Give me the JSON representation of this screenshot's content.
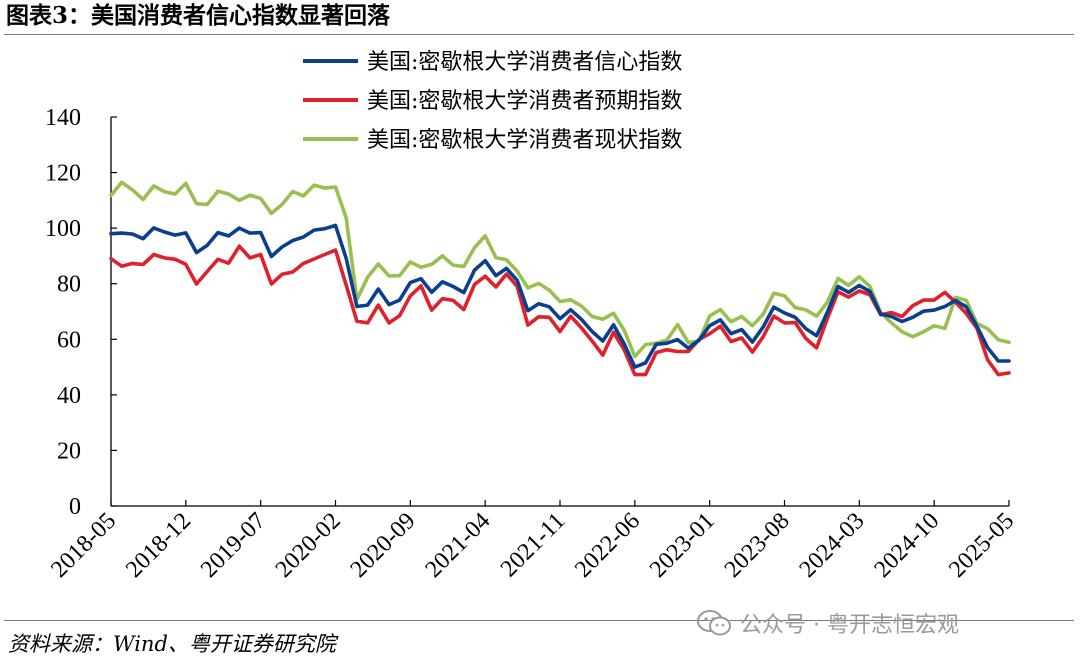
{
  "title": "图表3：美国消费者信心指数显著回落",
  "source": "资料来源：Wind、粤开证券研究院",
  "watermark": "公众号 · 粤开志恒宏观",
  "colors": {
    "confidence": "#0a3f8f",
    "expectations": "#e0202a",
    "current": "#98bf50"
  },
  "chart_data": {
    "type": "line",
    "title": "",
    "xlabel": "",
    "ylabel": "",
    "ylim": [
      0,
      140
    ],
    "yticks": [
      0,
      20,
      40,
      60,
      80,
      100,
      120,
      140
    ],
    "grid": false,
    "legend_position": "top-center",
    "x": [
      "2018-05",
      "2018-06",
      "2018-07",
      "2018-08",
      "2018-09",
      "2018-10",
      "2018-11",
      "2018-12",
      "2019-01",
      "2019-02",
      "2019-03",
      "2019-04",
      "2019-05",
      "2019-06",
      "2019-07",
      "2019-08",
      "2019-09",
      "2019-10",
      "2019-11",
      "2019-12",
      "2020-01",
      "2020-02",
      "2020-03",
      "2020-04",
      "2020-05",
      "2020-06",
      "2020-07",
      "2020-08",
      "2020-09",
      "2020-10",
      "2020-11",
      "2020-12",
      "2021-01",
      "2021-02",
      "2021-03",
      "2021-04",
      "2021-05",
      "2021-06",
      "2021-07",
      "2021-08",
      "2021-09",
      "2021-10",
      "2021-11",
      "2021-12",
      "2022-01",
      "2022-02",
      "2022-03",
      "2022-04",
      "2022-05",
      "2022-06",
      "2022-07",
      "2022-08",
      "2022-09",
      "2022-10",
      "2022-11",
      "2022-12",
      "2023-01",
      "2023-02",
      "2023-03",
      "2023-04",
      "2023-05",
      "2023-06",
      "2023-07",
      "2023-08",
      "2023-09",
      "2023-10",
      "2023-11",
      "2023-12",
      "2024-01",
      "2024-02",
      "2024-03",
      "2024-04",
      "2024-05",
      "2024-06",
      "2024-07",
      "2024-08",
      "2024-09",
      "2024-10",
      "2024-11",
      "2024-12",
      "2025-01",
      "2025-02",
      "2025-03",
      "2025-04",
      "2025-05"
    ],
    "x_tick_labels": [
      "2018-05",
      "2018-12",
      "2019-07",
      "2020-02",
      "2020-09",
      "2021-04",
      "2021-11",
      "2022-06",
      "2023-01",
      "2023-08",
      "2024-03",
      "2024-10",
      "2025-05"
    ],
    "series": [
      {
        "name": "美国:密歇根大学消费者信心指数",
        "key": "confidence",
        "values": [
          98.0,
          98.2,
          97.9,
          96.2,
          100.1,
          98.6,
          97.5,
          98.3,
          91.2,
          93.8,
          98.4,
          97.2,
          100.0,
          98.2,
          98.4,
          89.8,
          93.2,
          95.5,
          96.8,
          99.3,
          99.8,
          101.0,
          89.1,
          71.8,
          72.3,
          78.1,
          72.5,
          74.1,
          80.4,
          81.8,
          76.9,
          80.7,
          79.0,
          76.8,
          84.9,
          88.3,
          82.9,
          85.5,
          81.2,
          70.3,
          72.8,
          71.7,
          67.4,
          70.6,
          67.2,
          62.8,
          59.4,
          65.2,
          58.4,
          50.0,
          51.5,
          58.2,
          58.6,
          59.9,
          56.8,
          59.7,
          64.9,
          67.0,
          62.0,
          63.5,
          59.0,
          64.4,
          71.6,
          69.5,
          67.9,
          63.8,
          61.3,
          69.7,
          79.0,
          76.9,
          79.4,
          77.2,
          69.1,
          68.2,
          66.4,
          67.9,
          70.1,
          70.5,
          71.8,
          74.0,
          71.7,
          64.7,
          57.0,
          52.2,
          52.2
        ]
      },
      {
        "name": "美国:密歇根大学消费者预期指数",
        "key": "expectations",
        "values": [
          89.0,
          86.3,
          87.3,
          86.9,
          90.5,
          89.3,
          88.8,
          87.0,
          79.9,
          84.4,
          88.8,
          87.4,
          93.5,
          89.3,
          90.5,
          79.9,
          83.4,
          84.2,
          87.3,
          88.9,
          90.5,
          92.1,
          79.5,
          66.5,
          65.9,
          72.3,
          65.9,
          68.5,
          75.6,
          79.2,
          70.5,
          74.6,
          74.0,
          70.7,
          79.7,
          82.7,
          78.8,
          83.5,
          79.0,
          65.1,
          68.1,
          67.9,
          62.8,
          68.3,
          64.1,
          59.4,
          54.3,
          62.5,
          56.3,
          47.3,
          47.3,
          55.2,
          56.2,
          55.6,
          55.6,
          59.9,
          62.0,
          64.7,
          59.2,
          60.5,
          55.4,
          60.9,
          68.3,
          65.9,
          66.0,
          60.3,
          56.9,
          67.4,
          77.1,
          75.2,
          77.4,
          76.0,
          68.8,
          69.6,
          68.2,
          72.1,
          74.1,
          74.1,
          76.9,
          73.3,
          69.3,
          64.0,
          52.6,
          47.3,
          47.9
        ]
      },
      {
        "name": "美国:密歇根大学消费者现状指数",
        "key": "current",
        "values": [
          111.8,
          116.5,
          113.8,
          110.3,
          115.2,
          113.1,
          112.3,
          116.1,
          108.8,
          108.5,
          113.3,
          112.3,
          110.0,
          111.9,
          110.7,
          105.3,
          108.5,
          113.2,
          111.6,
          115.5,
          114.4,
          114.8,
          103.7,
          74.3,
          82.3,
          87.1,
          82.8,
          82.9,
          87.8,
          85.9,
          87.0,
          90.0,
          86.7,
          86.2,
          93.0,
          97.2,
          89.4,
          88.6,
          84.5,
          78.5,
          80.1,
          77.7,
          73.6,
          74.2,
          72.0,
          68.2,
          67.2,
          69.4,
          63.3,
          53.8,
          58.1,
          58.6,
          59.7,
          65.3,
          58.8,
          59.4,
          68.4,
          70.7,
          66.3,
          68.2,
          64.9,
          69.0,
          76.6,
          75.7,
          71.4,
          70.6,
          68.3,
          73.3,
          81.9,
          79.4,
          82.5,
          79.0,
          69.6,
          65.9,
          62.7,
          60.9,
          62.7,
          64.9,
          63.9,
          75.1,
          74.0,
          65.7,
          63.8,
          59.8,
          58.9
        ]
      }
    ]
  }
}
